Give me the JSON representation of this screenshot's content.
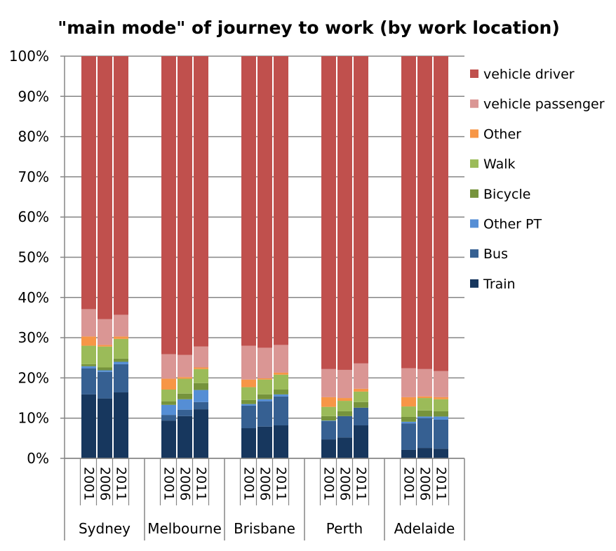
{
  "chart_data": {
    "type": "bar",
    "stacked": true,
    "percent": true,
    "title": "\"main mode\" of journey to work (by work location)",
    "xlabel": "",
    "ylabel": "",
    "ylim": [
      0,
      100
    ],
    "yticks": [
      "0%",
      "10%",
      "20%",
      "30%",
      "40%",
      "50%",
      "60%",
      "70%",
      "80%",
      "90%",
      "100%"
    ],
    "grid": true,
    "legend_position": "right",
    "groups": [
      "Sydney",
      "Melbourne",
      "Brisbane",
      "Perth",
      "Adelaide"
    ],
    "years": [
      "2001",
      "2006",
      "2011"
    ],
    "series": [
      {
        "name": "Train",
        "color": "#17375E",
        "values": [
          [
            15.9,
            14.9,
            16.4
          ],
          [
            9.4,
            10.5,
            12.2
          ],
          [
            7.5,
            7.9,
            8.2
          ],
          [
            4.7,
            5.2,
            8.2
          ],
          [
            2.1,
            2.6,
            2.4
          ]
        ]
      },
      {
        "name": "Bus",
        "color": "#366092",
        "values": [
          [
            6.5,
            6.6,
            7.0
          ],
          [
            1.4,
            1.6,
            1.8
          ],
          [
            5.6,
            6.3,
            7.2
          ],
          [
            4.6,
            5.3,
            4.4
          ],
          [
            6.6,
            7.4,
            7.2
          ]
        ]
      },
      {
        "name": "Other PT",
        "color": "#558ED5",
        "values": [
          [
            0.5,
            0.4,
            0.6
          ],
          [
            2.5,
            2.6,
            3.0
          ],
          [
            0.4,
            0.5,
            0.5
          ],
          [
            0.1,
            0.0,
            0.0
          ],
          [
            0.4,
            0.4,
            0.8
          ]
        ]
      },
      {
        "name": "Bicycle",
        "color": "#76933C",
        "values": [
          [
            0.5,
            0.7,
            0.8
          ],
          [
            0.9,
            1.4,
            1.7
          ],
          [
            1.0,
            1.2,
            1.2
          ],
          [
            1.1,
            1.2,
            1.4
          ],
          [
            1.2,
            1.5,
            1.3
          ]
        ]
      },
      {
        "name": "Walk",
        "color": "#9BBB59",
        "values": [
          [
            4.6,
            5.2,
            4.9
          ],
          [
            2.9,
            3.7,
            3.5
          ],
          [
            3.2,
            3.7,
            3.7
          ],
          [
            2.3,
            2.6,
            2.6
          ],
          [
            2.6,
            3.1,
            3.0
          ]
        ]
      },
      {
        "name": "Other",
        "color": "#F79646",
        "values": [
          [
            2.3,
            0.4,
            0.6
          ],
          [
            2.7,
            0.4,
            0.4
          ],
          [
            1.9,
            0.3,
            0.5
          ],
          [
            2.4,
            0.7,
            0.7
          ],
          [
            2.3,
            0.4,
            0.5
          ]
        ]
      },
      {
        "name": "vehicle passenger",
        "color": "#DA9694",
        "values": [
          [
            6.8,
            6.4,
            5.4
          ],
          [
            6.1,
            5.5,
            5.2
          ],
          [
            8.4,
            7.6,
            6.9
          ],
          [
            7.0,
            7.0,
            6.3
          ],
          [
            7.2,
            6.8,
            6.5
          ]
        ]
      },
      {
        "name": "vehicle driver",
        "color": "#C0504D",
        "values": [
          [
            62.9,
            65.4,
            64.3
          ],
          [
            74.1,
            74.3,
            72.2
          ],
          [
            72.0,
            72.5,
            71.8
          ],
          [
            77.8,
            78.0,
            76.4
          ],
          [
            77.6,
            77.8,
            78.3
          ]
        ]
      }
    ]
  }
}
